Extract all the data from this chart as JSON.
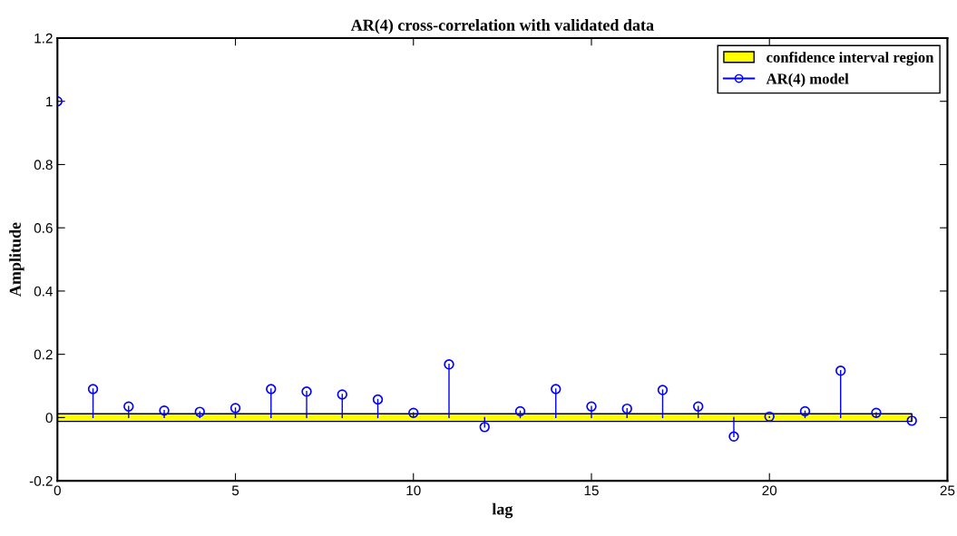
{
  "chart_data": {
    "type": "lollipop",
    "title": "AR(4) cross-correlation with validated data",
    "xlabel": "lag",
    "ylabel": "Amplitude",
    "x": [
      0,
      1,
      2,
      3,
      4,
      5,
      6,
      7,
      8,
      9,
      10,
      11,
      12,
      13,
      14,
      15,
      16,
      17,
      18,
      19,
      20,
      21,
      22,
      23,
      24
    ],
    "series": [
      {
        "name": "AR(4) model",
        "color": "#0000ff",
        "values": [
          1.0,
          0.09,
          0.035,
          0.022,
          0.018,
          0.03,
          0.09,
          0.082,
          0.073,
          0.057,
          0.015,
          0.168,
          -0.03,
          0.02,
          0.09,
          0.035,
          0.028,
          0.087,
          0.035,
          -0.06,
          0.003,
          0.02,
          0.148,
          0.015,
          -0.01
        ]
      }
    ],
    "bands": [
      {
        "axis": "y",
        "from": -0.012,
        "to": 0.012,
        "label": "confidence interval region",
        "color": "#ffff00"
      }
    ],
    "xlim": [
      0,
      25
    ],
    "xticks": [
      0,
      5,
      10,
      15,
      20,
      25
    ],
    "ylim": [
      -0.2,
      1.2
    ],
    "yticks": [
      -0.2,
      0,
      0.2,
      0.4,
      0.6,
      0.8,
      1,
      1.2
    ],
    "marker": "circle",
    "legend": "top right",
    "grid": false
  }
}
